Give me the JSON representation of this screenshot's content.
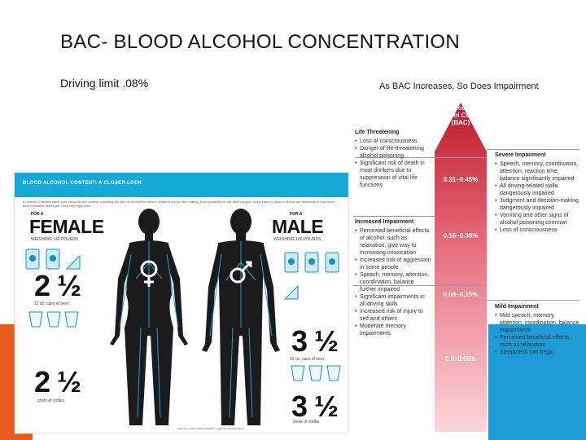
{
  "slide": {
    "title": "BAC- BLOOD ALCOHOL CONCENTRATION",
    "subtitle": "Driving limit .08%"
  },
  "infographic": {
    "header_title": "BLOOD ALCOHOL CONTENT: A CLOSER LOOK",
    "intro": "A number of factors affect your blood alcohol content, including the type of alcohol the drinker, whether you've been eating, how hydrated you are and how your body reacts to alcohol. Below are estimates of how much alcohol it takes before you reach the legal limit.",
    "female": {
      "for_label": "FOR A",
      "label": "FEMALE",
      "weight": "WEIGHING 140 POUNDS",
      "beer_count": "2 ½",
      "beer_caption": "12 oz. cans of beer",
      "vodka_count": "2 ½",
      "vodka_caption": "shots of vodka"
    },
    "male": {
      "for_label": "FOR A",
      "label": "MALE",
      "weight": "WEIGHING 160 POUNDS",
      "beer_count": "3 ½",
      "beer_caption": "12 oz. cans of beer",
      "vodka_count": "3 ½",
      "vodka_caption": "shots of vodka"
    },
    "source": "source: http://www.brad21.org/bac-charts.html",
    "colors": {
      "header": "#15a9d8",
      "figure": "#1b1b1b",
      "veins": "#16a3d6",
      "can": "#cdeaf5"
    }
  },
  "chart": {
    "heading": "As BAC Increases, So Does Impairment",
    "bar_label": [
      "Blood",
      "Alcohol Content",
      "(BAC)"
    ],
    "ranges": [
      "0.31–0.45%",
      "0.16–0.30%",
      "0.06–0.15%",
      "0.0–0.05%"
    ],
    "sections": {
      "life_threatening": {
        "title": "Life Threatening",
        "items": [
          "Loss of consciousness",
          "Danger of life-threatening alcohol poisoning",
          "Significant risk of death in most drinkers due to suppression of vital life functions"
        ]
      },
      "severe_impairment": {
        "title": "Severe Impairment",
        "items": [
          "Speech, memory, coordination, attention, reaction time, balance significantly impaired",
          "All driving-related skills dangerously impaired",
          "Judgment and decision-making dangerously impaired",
          "Vomiting and other signs of alcohol poisoning common",
          "Loss of consciousness"
        ]
      },
      "increased_impairment": {
        "title": "Increased Impairment",
        "items": [
          "Perceived beneficial effects of alcohol, such as relaxation, give way to increasing intoxication",
          "Increased risk of aggression in some people",
          "Speech, memory, attention, coordination, balance further impaired",
          "Significant impairments in all driving skills",
          "Increased risk of injury to self and others",
          "Moderate memory impairments"
        ]
      },
      "mild_impairment": {
        "title": "Mild Impairment",
        "items": [
          "Mild speech, memory, attention, coordination, balance impairments",
          "Perceived beneficial effects, such as relaxation",
          "Sleepiness can begin"
        ]
      }
    },
    "colors": {
      "bar_top": "#c0192a",
      "bar_bottom": "#fbd7dc",
      "rule": "#999999"
    }
  },
  "colors": {
    "accent_orange": "#ea5a1e",
    "accent_blue": "#1d9bd7"
  }
}
